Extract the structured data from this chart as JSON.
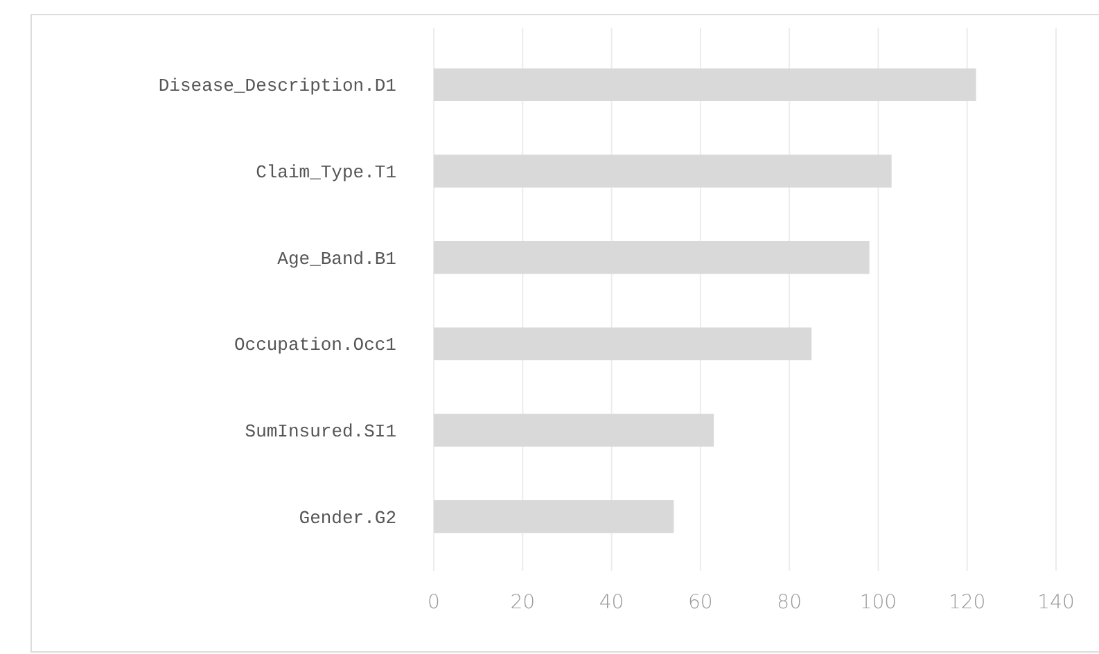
{
  "chart_data": {
    "type": "bar",
    "orientation": "horizontal",
    "categories": [
      "Disease_Description.D1",
      "Claim_Type.T1",
      "Age_Band.B1",
      "Occupation.Occ1",
      "SumInsured.SI1",
      "Gender.G2"
    ],
    "values": [
      122,
      103,
      98,
      85,
      63,
      54
    ],
    "color": "#d9d9d9",
    "xlim": [
      0,
      140
    ],
    "xticks": [
      0,
      20,
      40,
      60,
      80,
      100,
      120,
      140
    ],
    "grid": "x"
  }
}
